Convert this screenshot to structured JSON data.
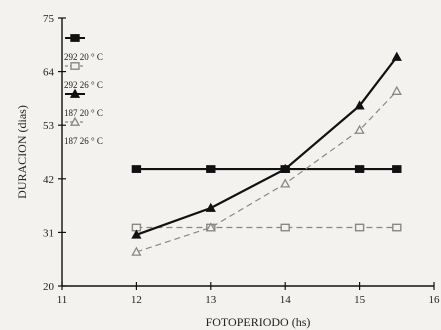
{
  "chart_data": {
    "type": "line",
    "xlabel": "FOTOPERIODO (hs)",
    "ylabel": "DURACION (dias)",
    "xlim": [
      11,
      16
    ],
    "ylim": [
      20,
      75
    ],
    "xticks": [
      11,
      12,
      13,
      14,
      15,
      16
    ],
    "yticks": [
      20,
      31,
      42,
      53,
      64,
      75
    ],
    "grid": false,
    "legend_position": "top-left",
    "series": [
      {
        "name": "292 20 ° C",
        "marker": "square-filled",
        "line": "solid",
        "color": "#111111",
        "x": [
          12,
          13,
          14,
          15,
          15.5
        ],
        "y": [
          44,
          44,
          44,
          44,
          44
        ]
      },
      {
        "name": "292 26 ° C",
        "marker": "square-open",
        "line": "dashed",
        "color": "#888888",
        "x": [
          12,
          13,
          14,
          15,
          15.5
        ],
        "y": [
          32,
          32,
          32,
          32,
          32
        ]
      },
      {
        "name": "187 20 ° C",
        "marker": "triangle-filled",
        "line": "solid",
        "color": "#111111",
        "x": [
          12,
          13,
          14,
          15,
          15.5
        ],
        "y": [
          30.5,
          36,
          44,
          57,
          67
        ]
      },
      {
        "name": "187 26 ° C",
        "marker": "triangle-open",
        "line": "dashed",
        "color": "#888888",
        "x": [
          12,
          13,
          14,
          15,
          15.5
        ],
        "y": [
          27,
          32,
          41,
          52,
          60
        ]
      }
    ]
  }
}
